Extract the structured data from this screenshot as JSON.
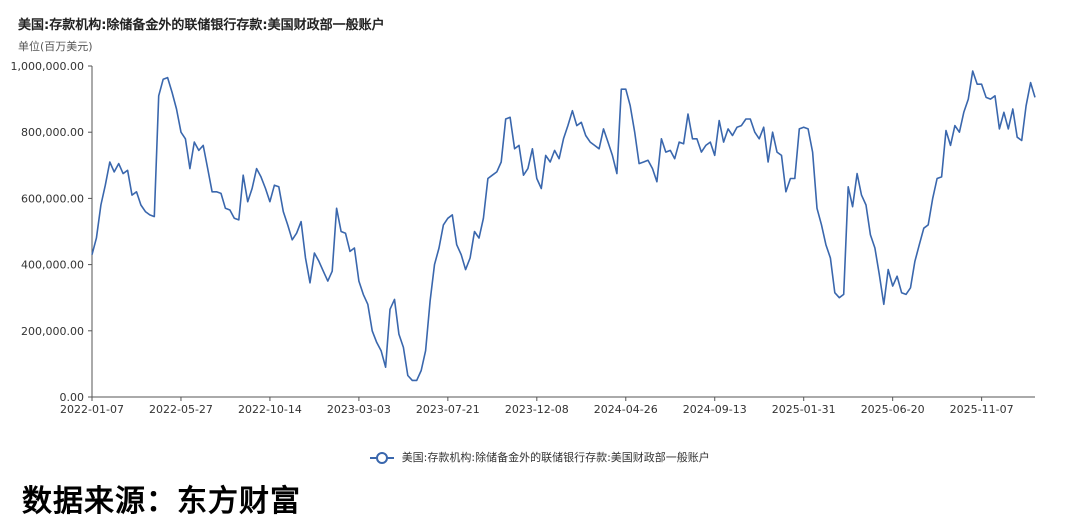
{
  "chart_data": {
    "type": "line",
    "title": "美国:存款机构:除储备金外的联储银行存款:美国财政部一般账户",
    "ylabel": "单位(百万美元)",
    "ylim": [
      0,
      1000000
    ],
    "y_ticks": [
      "0.00",
      "200,000.00",
      "400,000.00",
      "600,000.00",
      "800,000.00",
      "1,000,000.00"
    ],
    "x_ticks": [
      "2022-01-07",
      "2022-05-27",
      "2022-10-14",
      "2023-03-03",
      "2023-07-21",
      "2023-12-08",
      "2024-04-26",
      "2024-09-13",
      "2025-01-31",
      "2025-06-20",
      "2025-11-07"
    ],
    "series": [
      {
        "name": "美国:存款机构:除储备金外的联储银行存款:美国财政部一般账户",
        "values": [
          430000,
          480000,
          580000,
          640000,
          710000,
          680000,
          705000,
          675000,
          685000,
          610000,
          620000,
          580000,
          560000,
          550000,
          545000,
          910000,
          960000,
          965000,
          920000,
          870000,
          800000,
          780000,
          690000,
          770000,
          745000,
          760000,
          690000,
          620000,
          620000,
          615000,
          570000,
          565000,
          540000,
          535000,
          670000,
          590000,
          630000,
          690000,
          665000,
          630000,
          590000,
          640000,
          635000,
          560000,
          520000,
          475000,
          495000,
          530000,
          420000,
          345000,
          435000,
          410000,
          380000,
          350000,
          380000,
          570000,
          500000,
          495000,
          440000,
          450000,
          350000,
          310000,
          280000,
          200000,
          165000,
          140000,
          90000,
          265000,
          295000,
          190000,
          150000,
          65000,
          50000,
          50000,
          80000,
          140000,
          290000,
          400000,
          450000,
          520000,
          540000,
          550000,
          460000,
          430000,
          385000,
          420000,
          500000,
          480000,
          540000,
          660000,
          670000,
          680000,
          710000,
          840000,
          845000,
          750000,
          760000,
          670000,
          690000,
          750000,
          660000,
          630000,
          730000,
          710000,
          745000,
          720000,
          780000,
          820000,
          865000,
          820000,
          830000,
          790000,
          770000,
          760000,
          750000,
          810000,
          770000,
          730000,
          675000,
          930000,
          930000,
          880000,
          800000,
          705000,
          710000,
          715000,
          690000,
          650000,
          780000,
          740000,
          745000,
          720000,
          770000,
          765000,
          855000,
          780000,
          780000,
          740000,
          760000,
          770000,
          730000,
          835000,
          770000,
          810000,
          790000,
          815000,
          820000,
          840000,
          840000,
          800000,
          780000,
          815000,
          710000,
          800000,
          740000,
          730000,
          620000,
          660000,
          660000,
          810000,
          815000,
          810000,
          740000,
          570000,
          520000,
          460000,
          420000,
          315000,
          300000,
          310000,
          635000,
          575000,
          675000,
          610000,
          580000,
          490000,
          450000,
          370000,
          280000,
          385000,
          335000,
          365000,
          315000,
          310000,
          330000,
          410000,
          460000,
          510000,
          520000,
          600000,
          660000,
          665000,
          805000,
          760000,
          820000,
          800000,
          860000,
          900000,
          985000,
          945000,
          945000,
          905000,
          900000,
          910000,
          810000,
          860000,
          810000,
          870000,
          785000,
          775000,
          880000,
          950000,
          905000
        ]
      }
    ],
    "grid": false,
    "legend_position": "bottom"
  },
  "footer": {
    "source": "数据来源：东方财富"
  },
  "colors": {
    "line": "#3a67ad",
    "axis": "#555555"
  }
}
